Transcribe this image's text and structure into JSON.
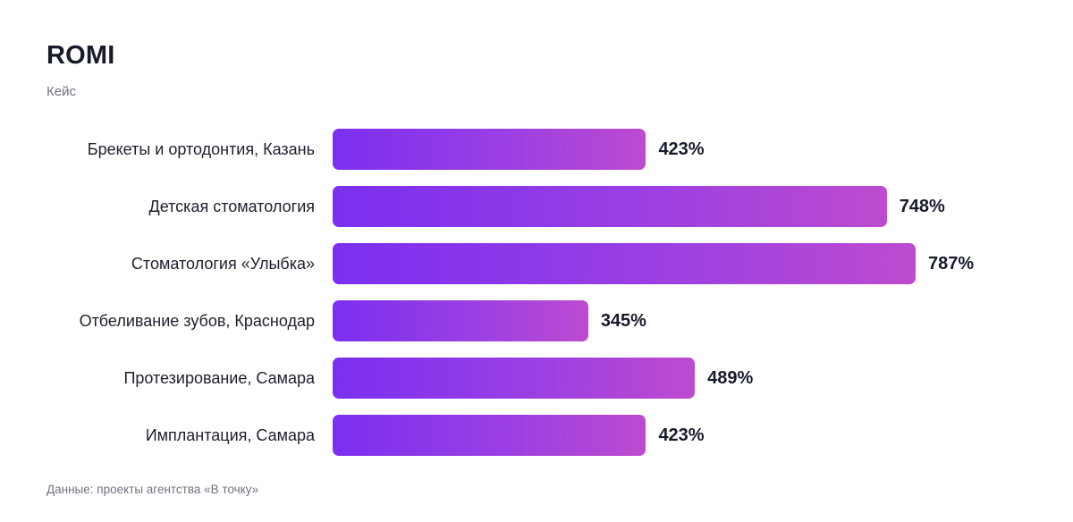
{
  "chart_data": {
    "type": "bar",
    "orientation": "horizontal",
    "title": "ROMI",
    "subtitle": "Кейс",
    "categories": [
      "Брекеты и ортодонтия, Казань",
      "Детская стоматология",
      "Стоматология «Улыбка»",
      "Отбеливание зубов, Краснодар",
      "Протезирование, Самара",
      "Имплантация, Самара"
    ],
    "values": [
      423,
      748,
      787,
      345,
      489,
      423
    ],
    "value_labels": [
      "423%",
      "748%",
      "787%",
      "345%",
      "489%",
      "423%"
    ],
    "xlim": [
      0,
      950
    ],
    "grid": false,
    "legend": "none",
    "source": "Данные: проекты агентства «В точку»",
    "colors": {
      "bar_gradient_start": "#7b2ff0",
      "bar_gradient_end": "#bd4bcf"
    }
  }
}
